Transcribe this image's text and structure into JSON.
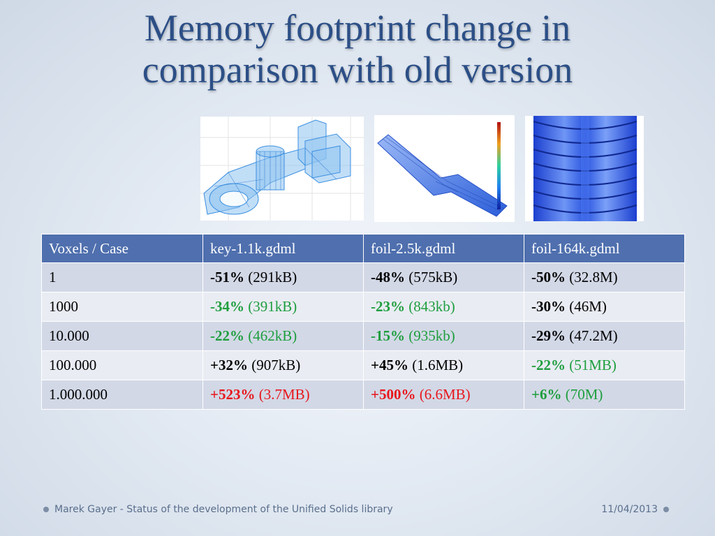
{
  "slide": {
    "title_line1": "Memory footprint change in",
    "title_line2": "comparison with old version"
  },
  "images": [
    {
      "name": "key-geometry-image",
      "icon": "wireframe-key-model"
    },
    {
      "name": "foil-geometry-image",
      "icon": "foil-surface-with-colorbar"
    },
    {
      "name": "foil-cylinder-image",
      "icon": "ribbed-cylinder-model"
    }
  ],
  "table": {
    "headers": [
      "Voxels / Case",
      "key-1.1k.gdml",
      "foil-2.5k.gdml",
      "foil-164k.gdml"
    ],
    "rows": [
      {
        "label": "1",
        "cells": [
          {
            "pct": "-51%",
            "size": "(291kB)",
            "color": "black"
          },
          {
            "pct": "-48%",
            "size": "(575kB)",
            "color": "black"
          },
          {
            "pct": "-50%",
            "size": "(32.8M)",
            "color": "black"
          }
        ]
      },
      {
        "label": "1000",
        "cells": [
          {
            "pct": "-34%",
            "size": "(391kB)",
            "color": "green"
          },
          {
            "pct": "-23%",
            "size": "(843kb)",
            "color": "green"
          },
          {
            "pct": "-30%",
            "size": "(46M)",
            "color": "black"
          }
        ]
      },
      {
        "label": "10.000",
        "cells": [
          {
            "pct": "-22%",
            "size": "(462kB)",
            "color": "green"
          },
          {
            "pct": "-15%",
            "size": "(935kb)",
            "color": "green"
          },
          {
            "pct": "-29%",
            "size": "(47.2M)",
            "color": "black"
          }
        ]
      },
      {
        "label": "100.000",
        "cells": [
          {
            "pct": "+32%",
            "size": "(907kB)",
            "color": "black"
          },
          {
            "pct": "+45%",
            "size": "(1.6MB)",
            "color": "black"
          },
          {
            "pct": "-22%",
            "size": "(51MB)",
            "color": "green"
          }
        ]
      },
      {
        "label": "1.000.000",
        "cells": [
          {
            "pct": "+523%",
            "size": "(3.7MB)",
            "color": "red"
          },
          {
            "pct": "+500%",
            "size": "(6.6MB)",
            "color": "red"
          },
          {
            "pct": "+6%",
            "size": "(70M)",
            "color": "green"
          }
        ]
      }
    ]
  },
  "colors": {
    "title": "#2c4f86",
    "header_bg": "#4f6fae",
    "green": "#1e9e3e",
    "red": "#e8161c"
  },
  "footer": {
    "left_text": "Marek Gayer - Status of the development of the Unified Solids library",
    "right_text": "11/04/2013"
  }
}
